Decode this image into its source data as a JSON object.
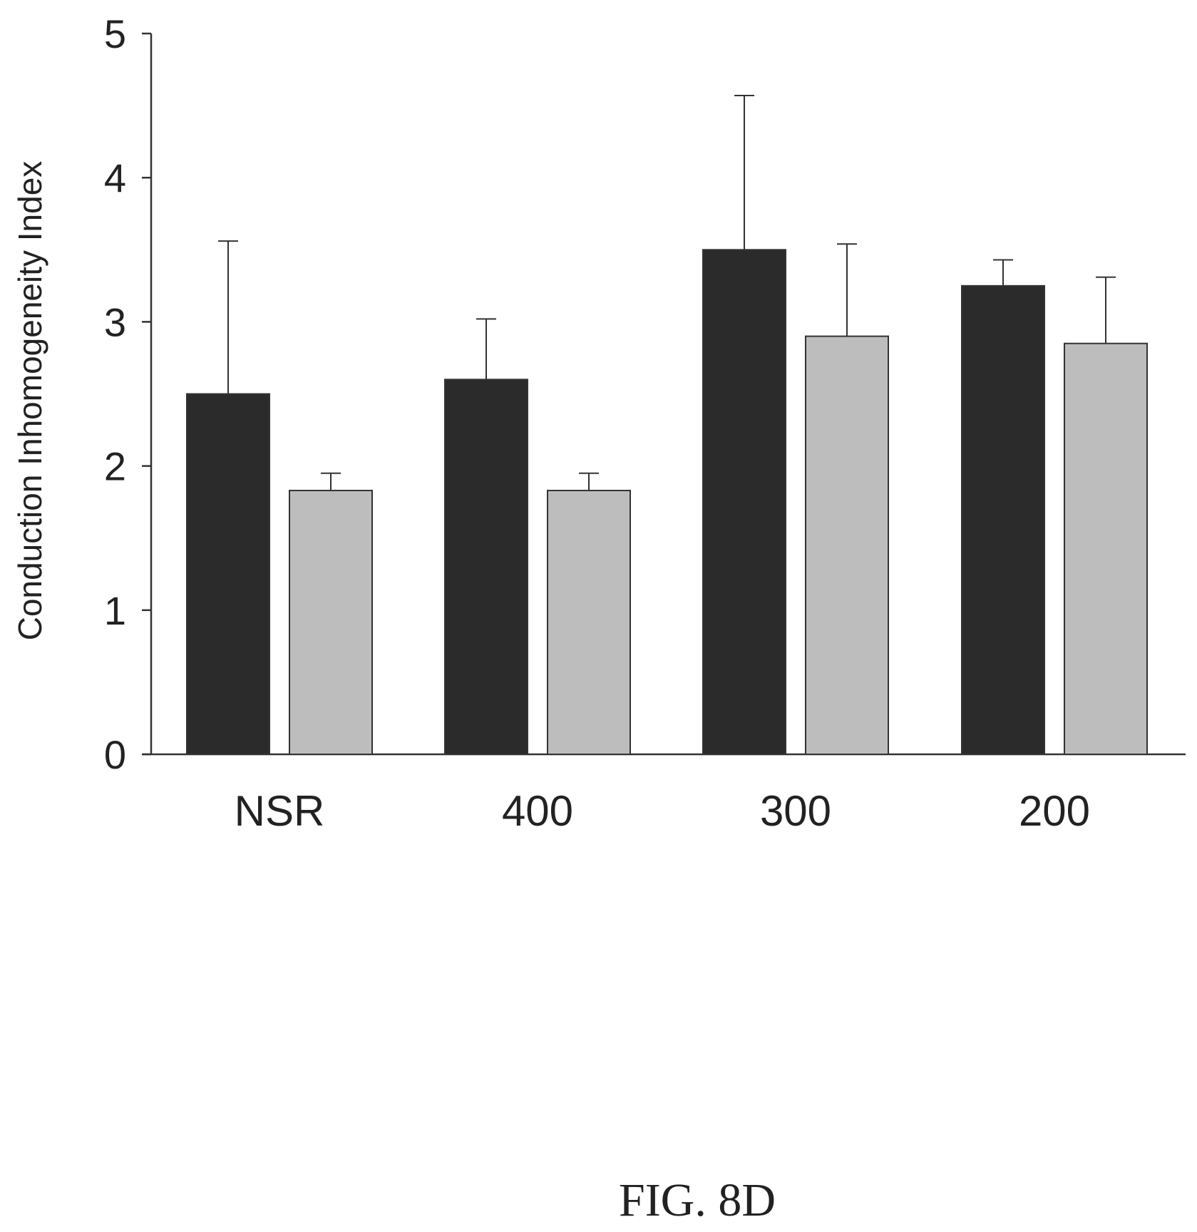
{
  "chart_data": {
    "type": "bar",
    "categories": [
      "NSR",
      "400",
      "300",
      "200"
    ],
    "series": [
      {
        "values": [
          2.5,
          2.6,
          3.5,
          3.25
        ],
        "errors": [
          1.06,
          0.42,
          1.07,
          0.18
        ],
        "color": "#2b2b2b"
      },
      {
        "values": [
          1.83,
          1.83,
          2.9,
          2.85
        ],
        "errors": [
          0.12,
          0.12,
          0.64,
          0.46
        ],
        "color": "#bdbdbd"
      }
    ],
    "title": "",
    "xlabel": "",
    "ylabel": "Conduction Inhomogeneity Index",
    "ylim": [
      0,
      5
    ],
    "yticks": [
      "0",
      "1",
      "2",
      "3",
      "4",
      "5"
    ],
    "error_bars": "upper",
    "grid": false,
    "legend": "none"
  },
  "caption": "FIG. 8D"
}
